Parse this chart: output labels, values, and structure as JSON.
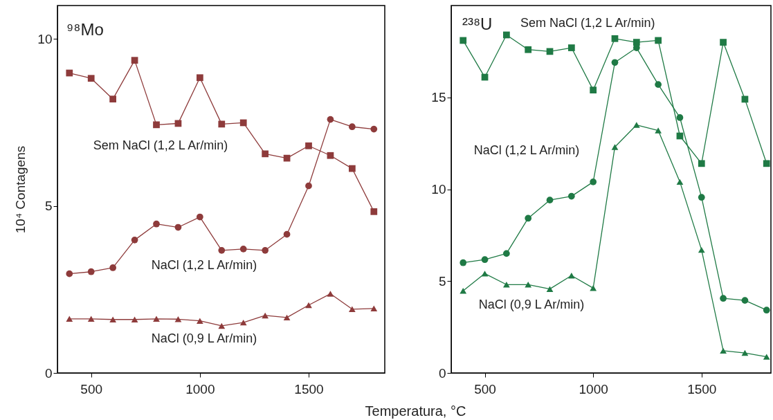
{
  "chart_data": [
    {
      "type": "line",
      "ylabel": "10⁴ Contagens",
      "xlabel": "Temperatura, °C",
      "annotations": [
        "⁹⁸Mo"
      ],
      "x": [
        400,
        500,
        600,
        700,
        800,
        900,
        1000,
        1100,
        1200,
        1300,
        1400,
        1500,
        1600,
        1700,
        1800
      ],
      "xlim": [
        345,
        1850
      ],
      "xticks": [
        500,
        1000,
        1500
      ],
      "ylim": [
        0,
        11
      ],
      "yticks": [
        0,
        5,
        10
      ],
      "grid": false,
      "legend": false,
      "series": [
        {
          "name": "Sem NaCl (1,2 L Ar/min)",
          "color": "#8e3b3b",
          "marker": "square",
          "values": [
            8.98,
            8.82,
            8.2,
            9.36,
            7.43,
            7.47,
            8.84,
            7.45,
            7.49,
            6.56,
            6.43,
            6.8,
            6.51,
            6.12,
            4.83
          ]
        },
        {
          "name": "NaCl (1,2 L Ar/min)",
          "color": "#8e3b3b",
          "marker": "circle",
          "values": [
            2.97,
            3.03,
            3.15,
            3.98,
            4.46,
            4.36,
            4.67,
            3.67,
            3.71,
            3.67,
            4.15,
            5.6,
            7.59,
            7.37,
            7.3
          ]
        },
        {
          "name": "NaCl (0,9 L Ar/min)",
          "color": "#8e3b3b",
          "marker": "triangle",
          "values": [
            1.62,
            1.62,
            1.6,
            1.6,
            1.62,
            1.61,
            1.56,
            1.41,
            1.51,
            1.72,
            1.66,
            2.03,
            2.37,
            1.91,
            1.93
          ]
        }
      ]
    },
    {
      "type": "line",
      "annotations": [
        "²³⁸U"
      ],
      "x": [
        400,
        500,
        600,
        700,
        800,
        900,
        1000,
        1100,
        1200,
        1300,
        1400,
        1500,
        1600,
        1700,
        1800
      ],
      "xlim": [
        345,
        1820
      ],
      "xticks": [
        500,
        1000,
        1500
      ],
      "ylim": [
        0,
        20
      ],
      "yticks": [
        0,
        5,
        10,
        15
      ],
      "grid": false,
      "legend": false,
      "series": [
        {
          "name": "Sem NaCl (1,2 L Ar/min)",
          "color": "#1f7a45",
          "marker": "square",
          "values": [
            18.1,
            16.1,
            18.4,
            17.6,
            17.5,
            17.7,
            15.4,
            18.2,
            18.0,
            18.1,
            12.9,
            11.4,
            18.0,
            14.9,
            11.4
          ]
        },
        {
          "name": "NaCl (1,2 L Ar/min)",
          "color": "#1f7a45",
          "marker": "circle",
          "values": [
            6.0,
            6.17,
            6.5,
            8.42,
            9.41,
            9.62,
            10.4,
            16.9,
            17.7,
            15.7,
            13.9,
            9.56,
            4.06,
            3.95,
            3.42
          ]
        },
        {
          "name": "NaCl (0,9 L Ar/min)",
          "color": "#1f7a45",
          "marker": "triangle",
          "values": [
            4.47,
            5.41,
            4.81,
            4.81,
            4.57,
            5.3,
            4.62,
            12.3,
            13.5,
            13.2,
            10.4,
            6.7,
            1.21,
            1.09,
            0.88
          ]
        }
      ]
    }
  ]
}
